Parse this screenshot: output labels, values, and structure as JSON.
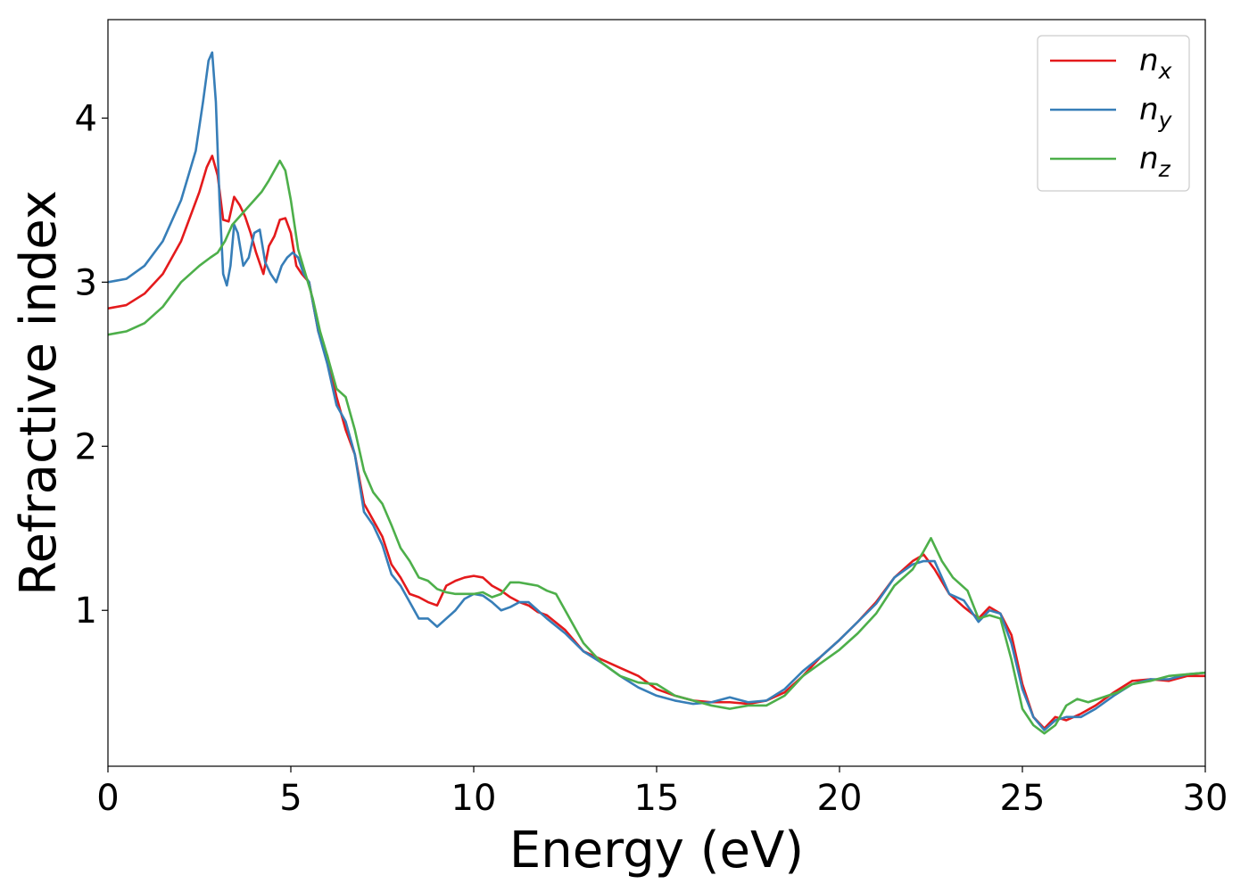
{
  "chart_data": {
    "type": "line",
    "title": "",
    "xlabel": "Energy (eV)",
    "ylabel": "Refractive index",
    "xlim": [
      0,
      30
    ],
    "ylim": [
      0.05,
      4.6
    ],
    "xticks": [
      "0",
      "5",
      "10",
      "15",
      "20",
      "25",
      "30"
    ],
    "yticks": [
      "1",
      "2",
      "3",
      "4"
    ],
    "grid": false,
    "legend_position": "top-right",
    "series": [
      {
        "name": "n_x",
        "legend_base": "n",
        "legend_sub": "x",
        "color": "#e41a1c",
        "x": [
          0,
          0.5,
          1,
          1.5,
          2,
          2.5,
          2.7,
          2.85,
          3,
          3.15,
          3.3,
          3.45,
          3.6,
          3.75,
          3.9,
          4.05,
          4.25,
          4.4,
          4.55,
          4.7,
          4.85,
          5,
          5.15,
          5.3,
          5.5,
          5.75,
          6,
          6.25,
          6.5,
          6.75,
          7,
          7.25,
          7.5,
          7.75,
          8,
          8.25,
          8.5,
          8.75,
          9,
          9.25,
          9.5,
          9.75,
          10,
          10.25,
          10.5,
          10.75,
          11,
          11.25,
          11.5,
          11.75,
          12,
          12.5,
          13,
          13.5,
          14,
          14.5,
          15,
          15.5,
          16,
          16.5,
          17,
          17.5,
          18,
          18.5,
          19,
          19.5,
          20,
          20.5,
          21,
          21.5,
          22,
          22.3,
          22.6,
          23,
          23.4,
          23.8,
          24.1,
          24.4,
          24.7,
          25,
          25.3,
          25.6,
          25.9,
          26.2,
          26.6,
          27,
          27.5,
          28,
          28.5,
          29,
          29.5,
          30
        ],
        "y": [
          2.84,
          2.86,
          2.93,
          3.05,
          3.25,
          3.55,
          3.7,
          3.77,
          3.65,
          3.38,
          3.37,
          3.52,
          3.47,
          3.4,
          3.3,
          3.18,
          3.05,
          3.22,
          3.28,
          3.38,
          3.39,
          3.3,
          3.1,
          3.05,
          3.0,
          2.7,
          2.55,
          2.3,
          2.1,
          1.95,
          1.65,
          1.55,
          1.45,
          1.28,
          1.2,
          1.1,
          1.08,
          1.05,
          1.03,
          1.15,
          1.18,
          1.2,
          1.21,
          1.2,
          1.15,
          1.12,
          1.08,
          1.05,
          1.03,
          0.99,
          0.97,
          0.88,
          0.75,
          0.7,
          0.65,
          0.6,
          0.52,
          0.48,
          0.45,
          0.44,
          0.44,
          0.43,
          0.45,
          0.5,
          0.6,
          0.72,
          0.82,
          0.93,
          1.05,
          1.2,
          1.3,
          1.34,
          1.25,
          1.1,
          1.02,
          0.95,
          1.02,
          0.98,
          0.85,
          0.55,
          0.35,
          0.28,
          0.35,
          0.33,
          0.37,
          0.42,
          0.5,
          0.57,
          0.58,
          0.57,
          0.6,
          0.6
        ]
      },
      {
        "name": "n_y",
        "legend_base": "n",
        "legend_sub": "y",
        "color": "#377eb8",
        "x": [
          0,
          0.5,
          1,
          1.5,
          2,
          2.4,
          2.6,
          2.75,
          2.85,
          2.95,
          3.05,
          3.15,
          3.25,
          3.35,
          3.45,
          3.55,
          3.7,
          3.85,
          4.0,
          4.15,
          4.3,
          4.45,
          4.6,
          4.75,
          4.9,
          5.05,
          5.2,
          5.35,
          5.5,
          5.75,
          6,
          6.25,
          6.5,
          6.75,
          7,
          7.25,
          7.5,
          7.75,
          8,
          8.25,
          8.5,
          8.75,
          9,
          9.25,
          9.5,
          9.75,
          10,
          10.25,
          10.5,
          10.75,
          11,
          11.25,
          11.5,
          11.75,
          12,
          12.5,
          13,
          13.5,
          14,
          14.5,
          15,
          15.5,
          16,
          16.5,
          17,
          17.5,
          18,
          18.5,
          19,
          19.5,
          20,
          20.5,
          21,
          21.5,
          22,
          22.3,
          22.6,
          23,
          23.4,
          23.8,
          24.1,
          24.4,
          24.7,
          25,
          25.3,
          25.6,
          25.9,
          26.2,
          26.6,
          27,
          27.5,
          28,
          28.5,
          29,
          29.5,
          30
        ],
        "y": [
          3.0,
          3.02,
          3.1,
          3.25,
          3.5,
          3.8,
          4.1,
          4.35,
          4.4,
          4.1,
          3.5,
          3.05,
          2.98,
          3.1,
          3.35,
          3.3,
          3.1,
          3.15,
          3.3,
          3.32,
          3.12,
          3.05,
          3.0,
          3.1,
          3.15,
          3.18,
          3.15,
          3.05,
          3.0,
          2.7,
          2.5,
          2.25,
          2.15,
          1.95,
          1.6,
          1.52,
          1.4,
          1.22,
          1.15,
          1.05,
          0.95,
          0.95,
          0.9,
          0.95,
          1.0,
          1.07,
          1.1,
          1.09,
          1.05,
          1.0,
          1.02,
          1.05,
          1.05,
          1.0,
          0.95,
          0.86,
          0.75,
          0.68,
          0.6,
          0.53,
          0.48,
          0.45,
          0.43,
          0.44,
          0.47,
          0.44,
          0.45,
          0.52,
          0.63,
          0.72,
          0.82,
          0.93,
          1.04,
          1.2,
          1.28,
          1.3,
          1.3,
          1.1,
          1.06,
          0.93,
          1.0,
          0.98,
          0.8,
          0.52,
          0.35,
          0.27,
          0.33,
          0.35,
          0.35,
          0.4,
          0.48,
          0.55,
          0.58,
          0.58,
          0.61,
          0.62
        ]
      },
      {
        "name": "n_z",
        "legend_base": "n",
        "legend_sub": "z",
        "color": "#4daf4a",
        "x": [
          0,
          0.5,
          1,
          1.5,
          2,
          2.5,
          2.8,
          3.0,
          3.2,
          3.4,
          3.6,
          3.8,
          4.0,
          4.2,
          4.4,
          4.6,
          4.7,
          4.85,
          5.0,
          5.2,
          5.4,
          5.6,
          5.8,
          6.0,
          6.25,
          6.5,
          6.75,
          7,
          7.25,
          7.5,
          7.75,
          8,
          8.25,
          8.5,
          8.75,
          9,
          9.25,
          9.5,
          9.75,
          10,
          10.25,
          10.5,
          10.75,
          11,
          11.25,
          11.5,
          11.75,
          12,
          12.25,
          12.5,
          13,
          13.5,
          14,
          14.5,
          15,
          15.5,
          16,
          16.5,
          17,
          17.5,
          18,
          18.5,
          19,
          19.5,
          20,
          20.5,
          21,
          21.5,
          22,
          22.3,
          22.5,
          22.8,
          23.1,
          23.5,
          23.8,
          24.1,
          24.4,
          24.7,
          25,
          25.3,
          25.6,
          25.9,
          26.2,
          26.5,
          26.8,
          27.2,
          27.6,
          28,
          28.5,
          29,
          29.5,
          30
        ],
        "y": [
          2.68,
          2.7,
          2.75,
          2.85,
          3.0,
          3.1,
          3.15,
          3.18,
          3.25,
          3.35,
          3.4,
          3.45,
          3.5,
          3.55,
          3.62,
          3.7,
          3.74,
          3.68,
          3.5,
          3.2,
          3.05,
          2.9,
          2.7,
          2.55,
          2.35,
          2.3,
          2.1,
          1.85,
          1.72,
          1.65,
          1.52,
          1.38,
          1.3,
          1.2,
          1.18,
          1.13,
          1.11,
          1.1,
          1.1,
          1.1,
          1.11,
          1.08,
          1.1,
          1.17,
          1.17,
          1.16,
          1.15,
          1.12,
          1.1,
          1.0,
          0.8,
          0.68,
          0.6,
          0.56,
          0.55,
          0.48,
          0.45,
          0.42,
          0.4,
          0.42,
          0.42,
          0.48,
          0.6,
          0.68,
          0.76,
          0.86,
          0.98,
          1.15,
          1.25,
          1.36,
          1.44,
          1.3,
          1.2,
          1.12,
          0.95,
          0.97,
          0.95,
          0.7,
          0.4,
          0.3,
          0.25,
          0.3,
          0.42,
          0.46,
          0.44,
          0.47,
          0.5,
          0.55,
          0.57,
          0.6,
          0.61,
          0.62
        ]
      }
    ]
  }
}
